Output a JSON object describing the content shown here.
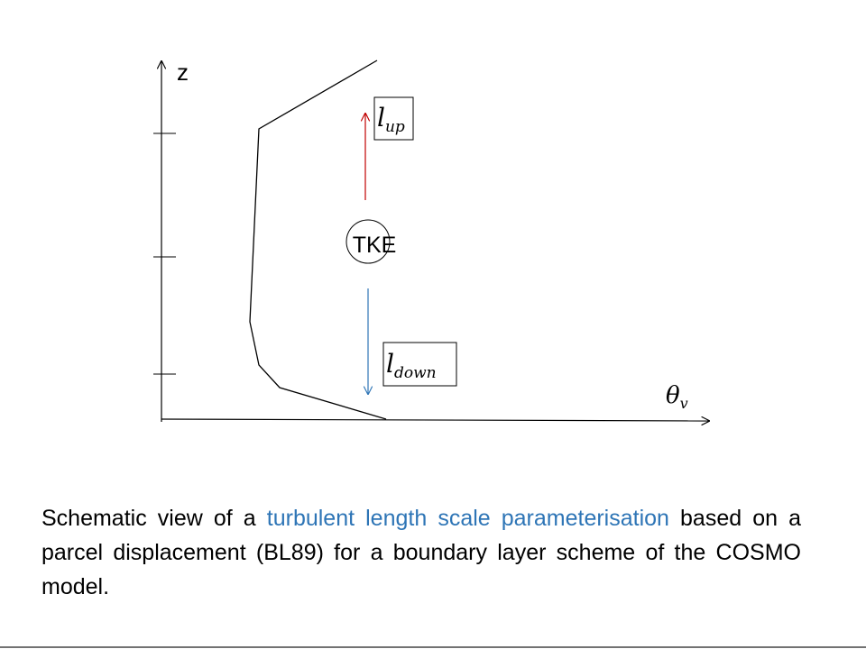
{
  "axes": {
    "y_label": "z",
    "x_label": {
      "base": "θ",
      "sub": "v"
    }
  },
  "labels": {
    "lup": {
      "base": "l",
      "sub": "up"
    },
    "center": "TKE",
    "ldown": {
      "base": "l",
      "sub": "down"
    }
  },
  "caption": {
    "part1": "Schematic view of a ",
    "highlight": "turbulent length scale parameterisation",
    "part2": " based on a parcel displacement (BL89) for a boundary layer scheme of the COSMO model."
  }
}
